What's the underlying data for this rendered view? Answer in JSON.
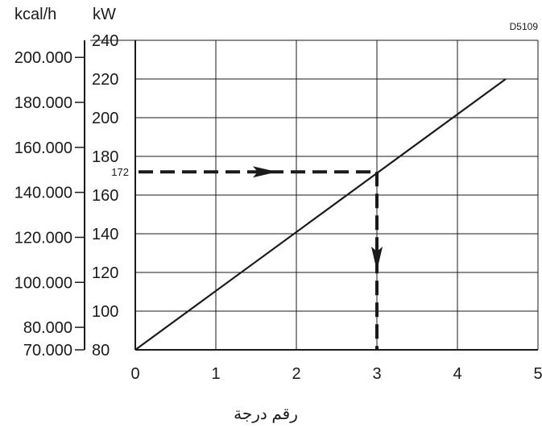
{
  "chart_data": {
    "type": "line",
    "code": "D5109",
    "xlabel": "رقم درجة",
    "y_unit_kw": "kW",
    "y_unit_kcal": "kcal/h",
    "x_ticks": [
      "0",
      "1",
      "2",
      "3",
      "4",
      "5"
    ],
    "kw_ticks": [
      "80",
      "100",
      "120",
      "140",
      "160",
      "180",
      "200",
      "220",
      "240"
    ],
    "kcal_ticks": [
      "70.000",
      "80.000",
      "100.000",
      "120.000",
      "140.000",
      "160.000",
      "180.000",
      "200.000"
    ],
    "kcal_values": [
      70000,
      80000,
      100000,
      120000,
      140000,
      160000,
      180000,
      200000
    ],
    "xlim": [
      0,
      5
    ],
    "ylim": [
      80,
      240
    ],
    "grid": true,
    "series": [
      {
        "x": [
          0,
          4.6
        ],
        "y": [
          80,
          220
        ]
      }
    ],
    "annotation": {
      "value_label": "172",
      "y": 172,
      "x": 3
    }
  }
}
